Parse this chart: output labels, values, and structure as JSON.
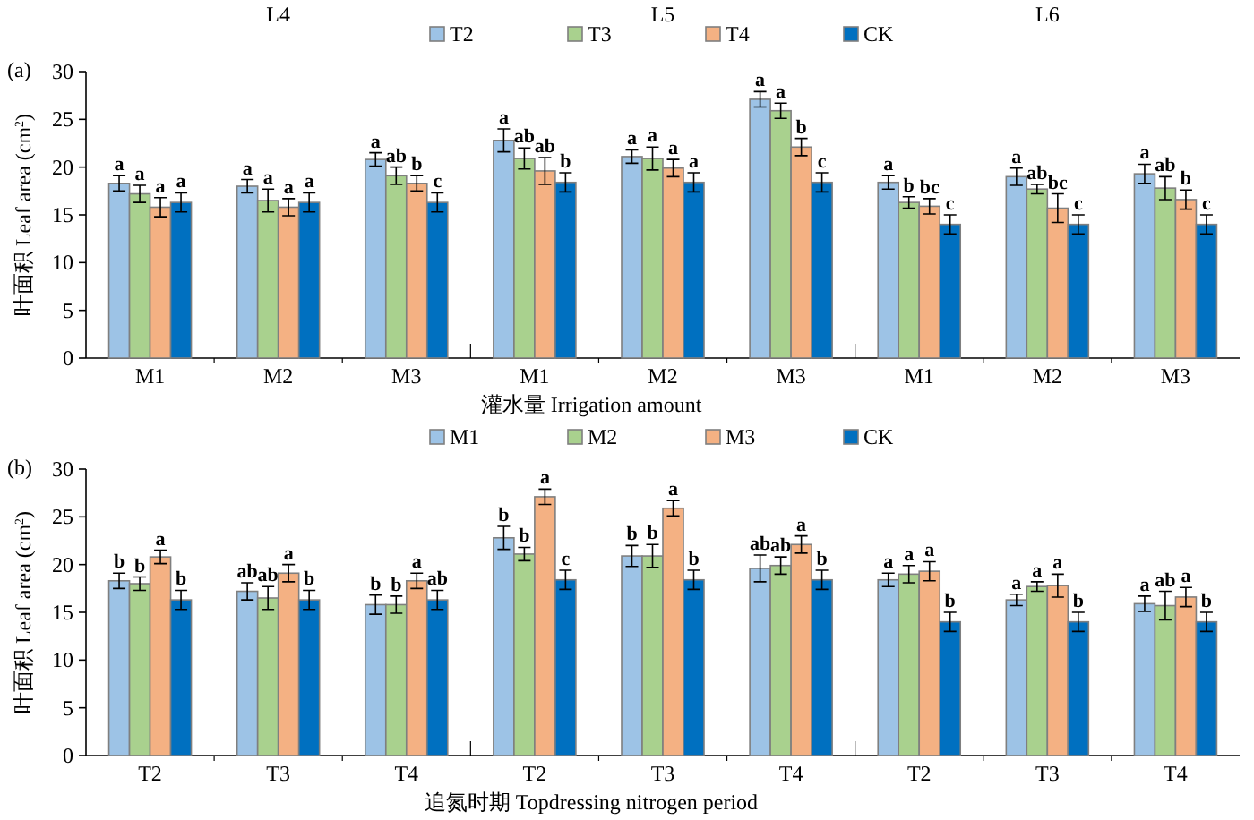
{
  "chart_data": [
    {
      "type": "bar",
      "title": "(a)",
      "xlabel": "灌水量 Irrigation amount",
      "ylabel": "叶面积 Leaf area (cm$^{2}$)",
      "annotations": [
        "L4",
        "L5",
        "L6"
      ],
      "categories": [
        "M1",
        "M2",
        "M3",
        "M1",
        "M2",
        "M3",
        "M1",
        "M2",
        "M3"
      ],
      "series": [
        {
          "name": "T2",
          "color": "#9dc3e6",
          "values": [
            18.3,
            18.0,
            20.8,
            22.8,
            21.1,
            27.1,
            18.4,
            19.0,
            19.3
          ],
          "errors": [
            0.8,
            0.7,
            0.7,
            1.2,
            0.7,
            0.8,
            0.7,
            0.9,
            1.0
          ],
          "value_labels": [
            "a",
            "a",
            "a",
            "a",
            "a",
            "a",
            "a",
            "a",
            "a"
          ]
        },
        {
          "name": "T3",
          "color": "#a9d18e",
          "values": [
            17.2,
            16.5,
            19.1,
            20.9,
            20.9,
            25.9,
            16.3,
            17.7,
            17.8
          ],
          "errors": [
            0.9,
            1.2,
            0.9,
            1.1,
            1.2,
            0.8,
            0.6,
            0.5,
            1.2
          ],
          "value_labels": [
            "a",
            "a",
            "ab",
            "ab",
            "a",
            "a",
            "b",
            "ab",
            "ab"
          ]
        },
        {
          "name": "T4",
          "color": "#f4b183",
          "values": [
            15.8,
            15.8,
            18.3,
            19.6,
            19.9,
            22.1,
            15.9,
            15.7,
            16.6
          ],
          "errors": [
            1.0,
            0.9,
            0.8,
            1.4,
            0.9,
            0.9,
            0.8,
            1.5,
            1.0
          ],
          "value_labels": [
            "a",
            "a",
            "b",
            "ab",
            "a",
            "b",
            "bc",
            "bc",
            "b"
          ]
        },
        {
          "name": "CK",
          "color": "#0070c0",
          "values": [
            16.3,
            16.3,
            16.3,
            18.4,
            18.4,
            18.4,
            14.0,
            14.0,
            14.0
          ],
          "errors": [
            1.0,
            1.0,
            1.0,
            1.0,
            1.0,
            1.0,
            1.0,
            1.0,
            1.0
          ],
          "value_labels": [
            "a",
            "a",
            "c",
            "b",
            "a",
            "c",
            "c",
            "c",
            "c"
          ]
        }
      ],
      "ylim": [
        0,
        30
      ],
      "yticks": [
        0,
        5,
        10,
        15,
        20,
        25,
        30
      ],
      "legend": "top",
      "grid": false
    },
    {
      "type": "bar",
      "title": "(b)",
      "xlabel": "追氮时期 Topdressing nitrogen period",
      "ylabel": "叶面积 Leaf area (cm$^{2}$)",
      "categories": [
        "T2",
        "T3",
        "T4",
        "T2",
        "T3",
        "T4",
        "T2",
        "T3",
        "T4"
      ],
      "series": [
        {
          "name": "M1",
          "color": "#9dc3e6",
          "values": [
            18.3,
            17.2,
            15.8,
            22.8,
            20.9,
            19.6,
            18.4,
            16.3,
            15.9
          ],
          "errors": [
            0.8,
            0.9,
            1.0,
            1.2,
            1.1,
            1.4,
            0.7,
            0.6,
            0.8
          ],
          "value_labels": [
            "b",
            "ab",
            "b",
            "b",
            "b",
            "ab",
            "a",
            "a",
            "a"
          ]
        },
        {
          "name": "M2",
          "color": "#a9d18e",
          "values": [
            18.0,
            16.5,
            15.8,
            21.1,
            20.9,
            19.9,
            19.0,
            17.7,
            15.7
          ],
          "errors": [
            0.7,
            1.2,
            0.9,
            0.7,
            1.2,
            0.9,
            0.9,
            0.5,
            1.5
          ],
          "value_labels": [
            "b",
            "ab",
            "b",
            "b",
            "b",
            "ab",
            "a",
            "a",
            "ab"
          ]
        },
        {
          "name": "M3",
          "color": "#f4b183",
          "values": [
            20.8,
            19.1,
            18.3,
            27.1,
            25.9,
            22.1,
            19.3,
            17.8,
            16.6
          ],
          "errors": [
            0.7,
            0.9,
            0.8,
            0.8,
            0.8,
            0.9,
            1.0,
            1.2,
            1.0
          ],
          "value_labels": [
            "a",
            "a",
            "a",
            "a",
            "a",
            "a",
            "a",
            "a",
            "a"
          ]
        },
        {
          "name": "CK",
          "color": "#0070c0",
          "values": [
            16.3,
            16.3,
            16.3,
            18.4,
            18.4,
            18.4,
            14.0,
            14.0,
            14.0
          ],
          "errors": [
            1.0,
            1.0,
            1.0,
            1.0,
            1.0,
            1.0,
            1.0,
            1.0,
            1.0
          ],
          "value_labels": [
            "b",
            "b",
            "ab",
            "c",
            "b",
            "b",
            "b",
            "b",
            "b"
          ]
        }
      ],
      "ylim": [
        0,
        30
      ],
      "yticks": [
        0,
        5,
        10,
        15,
        20,
        25,
        30
      ],
      "legend": "top",
      "grid": false
    }
  ]
}
